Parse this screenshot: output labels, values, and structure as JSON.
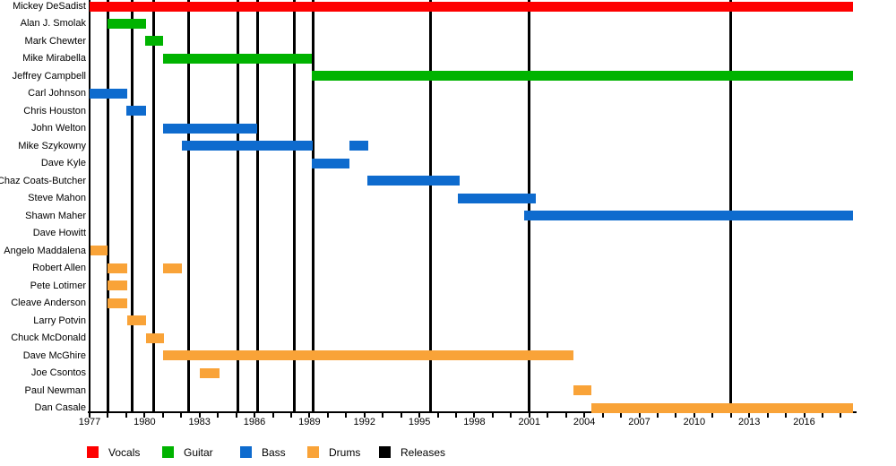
{
  "chart_data": {
    "type": "timeline",
    "x_axis": {
      "start": 1977,
      "end": 2018.66,
      "minor_tick_interval": 1,
      "major_ticks": [
        1977,
        1980,
        1983,
        1986,
        1989,
        1992,
        1995,
        1998,
        2001,
        2004,
        2007,
        2010,
        2013,
        2016
      ]
    },
    "colors": {
      "vocals": "#fe0000",
      "guitar": "#00b300",
      "bass": "#0e6bce",
      "drums": "#f9a338",
      "releases": "#000000"
    },
    "members": [
      {
        "name": "Mickey DeSadist",
        "role": "vocals",
        "stints": [
          [
            1977.0,
            2018.66
          ]
        ]
      },
      {
        "name": "Alan J. Smolak",
        "role": "guitar",
        "stints": [
          [
            1978.0,
            1980.1
          ]
        ]
      },
      {
        "name": "Mark Chewter",
        "role": "guitar",
        "stints": [
          [
            1980.05,
            1981.0
          ]
        ]
      },
      {
        "name": "Mike Mirabella",
        "role": "guitar",
        "stints": [
          [
            1981.0,
            1989.15
          ]
        ]
      },
      {
        "name": "Jeffrey Campbell",
        "role": "guitar",
        "stints": [
          [
            1989.15,
            2018.66
          ]
        ]
      },
      {
        "name": "Carl Johnson",
        "role": "bass",
        "stints": [
          [
            1977.0,
            1979.05
          ]
        ]
      },
      {
        "name": "Chris Houston",
        "role": "bass",
        "stints": [
          [
            1979.0,
            1980.1
          ]
        ]
      },
      {
        "name": "John Welton",
        "role": "bass",
        "stints": [
          [
            1981.0,
            1986.15
          ]
        ]
      },
      {
        "name": "Mike Szykowny",
        "role": "bass",
        "stints": [
          [
            1982.05,
            1989.2
          ],
          [
            1991.2,
            1992.2
          ]
        ]
      },
      {
        "name": "Dave Kyle",
        "role": "bass",
        "stints": [
          [
            1989.15,
            1991.2
          ]
        ]
      },
      {
        "name": "Chaz Coats-Butcher",
        "role": "bass",
        "stints": [
          [
            1992.15,
            1997.2
          ]
        ]
      },
      {
        "name": "Steve Mahon",
        "role": "bass",
        "stints": [
          [
            1997.1,
            2001.35
          ]
        ]
      },
      {
        "name": "Shawn Maher",
        "role": "bass",
        "stints": [
          [
            2000.7,
            2018.66
          ]
        ]
      },
      {
        "name": "Dave Howitt",
        "role": "bass",
        "stints": []
      },
      {
        "name": "Angelo Maddalena",
        "role": "drums",
        "stints": [
          [
            1977.05,
            1978.0
          ]
        ]
      },
      {
        "name": "Robert Allen",
        "role": "drums",
        "stints": [
          [
            1978.0,
            1979.05
          ],
          [
            1981.0,
            1982.05
          ]
        ]
      },
      {
        "name": "Pete Lotimer",
        "role": "drums",
        "stints": [
          [
            1978.0,
            1979.05
          ]
        ]
      },
      {
        "name": "Cleave Anderson",
        "role": "drums",
        "stints": [
          [
            1978.0,
            1979.05
          ]
        ]
      },
      {
        "name": "Larry Potvin",
        "role": "drums",
        "stints": [
          [
            1979.05,
            1980.1
          ]
        ]
      },
      {
        "name": "Chuck McDonald",
        "role": "drums",
        "stints": [
          [
            1980.1,
            1981.05
          ]
        ]
      },
      {
        "name": "Dave McGhire",
        "role": "drums",
        "stints": [
          [
            1981.0,
            2003.4
          ]
        ]
      },
      {
        "name": "Joe Csontos",
        "role": "drums",
        "stints": [
          [
            1983.0,
            1984.1
          ]
        ]
      },
      {
        "name": "Paul Newman",
        "role": "drums",
        "stints": [
          [
            2003.4,
            2004.4
          ]
        ]
      },
      {
        "name": "Dan Casale",
        "role": "drums",
        "stints": [
          [
            2004.4,
            2018.66
          ]
        ]
      }
    ],
    "release_lines": [
      1978.0,
      1979.3,
      1980.5,
      1982.4,
      1985.1,
      1986.15,
      1988.15,
      1989.2,
      1995.6,
      2001.0,
      2012.0
    ],
    "legend": [
      {
        "label": "Vocals",
        "color": "#fe0000"
      },
      {
        "label": "Guitar",
        "color": "#00b300"
      },
      {
        "label": "Bass",
        "color": "#0e6bce"
      },
      {
        "label": "Drums",
        "color": "#f9a338"
      },
      {
        "label": "Releases",
        "color": "#000000"
      }
    ]
  }
}
